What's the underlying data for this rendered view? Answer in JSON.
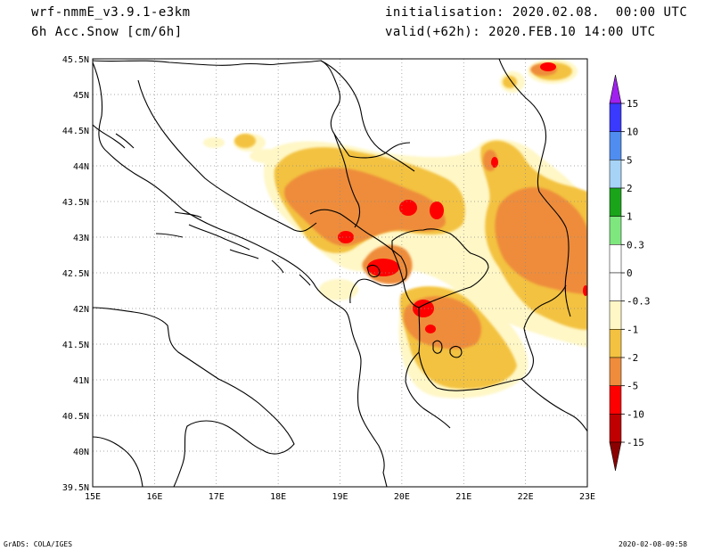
{
  "header": {
    "model": "wrf-nmmE_v3.9.1-e3km",
    "field": "6h Acc.Snow [cm/6h]",
    "init": "initialisation: 2020.02.08.  00:00 UTC",
    "valid": "valid(+62h): 2020.FEB.10 14:00 UTC"
  },
  "footer": {
    "left": "GrADS: COLA/IGES",
    "right": "2020-02-08-09:58"
  },
  "map": {
    "lon_labels": [
      "15E",
      "16E",
      "17E",
      "18E",
      "19E",
      "20E",
      "21E",
      "22E",
      "23E"
    ],
    "lat_labels": [
      "45.5N",
      "45N",
      "44.5N",
      "44N",
      "43.5N",
      "43N",
      "42.5N",
      "42N",
      "41.5N",
      "41N",
      "40.5N",
      "40N",
      "39.5N"
    ]
  },
  "colorbar": {
    "labels": [
      "15",
      "10",
      "5",
      "2",
      "1",
      "0.3",
      "0",
      "-0.3",
      "-1",
      "-2",
      "-5",
      "-10",
      "-15"
    ],
    "colors": [
      "#3a3aff",
      "#4f8ef0",
      "#a7d3f7",
      "#1aa41a",
      "#7ee77e",
      "#ffffff",
      "#ffffff",
      "#fff7c6",
      "#f3c241",
      "#ee8c3b",
      "#ff0000",
      "#c00000",
      "#8b0000"
    ],
    "top_arrow_color": "#a020f0",
    "bottom_arrow_color": "#8b0000"
  },
  "snow_colors": {
    "light": "#fff7c6",
    "yellow": "#f3c241",
    "orange": "#ee8c3b",
    "red": "#ff0000"
  }
}
